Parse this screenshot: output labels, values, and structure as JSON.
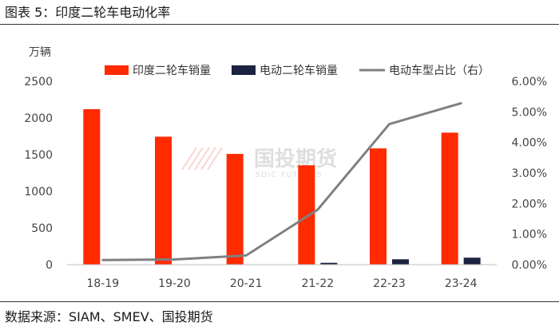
{
  "header": {
    "figure_title": "图表 5：印度二轮车电动化率"
  },
  "footer": {
    "source": "数据来源：SIAM、SMEV、国投期货"
  },
  "watermark": {
    "text": "国投期货",
    "subtext": "SDIC FUTURES"
  },
  "colors": {
    "ice": "#ff2a00",
    "ev": "#1c2340",
    "ratio": "#808080"
  },
  "chart_data": {
    "type": "bar",
    "categories": [
      "18-19",
      "19-20",
      "20-21",
      "21-22",
      "22-23",
      "23-24"
    ],
    "unit_label": "万辆",
    "ylim": [
      0,
      2500
    ],
    "yticks": [
      "0",
      "500",
      "1000",
      "1500",
      "2000",
      "2500"
    ],
    "y2lim": [
      0,
      6
    ],
    "y2ticks": [
      "0.00%",
      "1.00%",
      "2.00%",
      "3.00%",
      "4.00%",
      "5.00%",
      "6.00%"
    ],
    "legend_position": "top",
    "series": [
      {
        "name": "印度二轮车销量",
        "type": "bar",
        "axis": "left",
        "values": [
          2120,
          1745,
          1510,
          1355,
          1585,
          1800
        ]
      },
      {
        "name": "电动二轮车销量",
        "type": "bar",
        "axis": "left",
        "values": [
          3,
          3,
          4,
          25,
          73,
          95
        ]
      },
      {
        "name": "电动车型占比（右）",
        "type": "line",
        "axis": "right",
        "values": [
          0.15,
          0.17,
          0.3,
          1.8,
          4.6,
          5.28
        ]
      }
    ]
  }
}
